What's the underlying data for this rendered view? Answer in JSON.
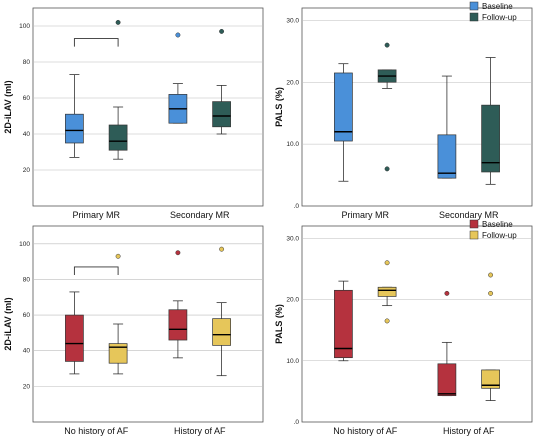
{
  "chart_data": [
    {
      "type": "boxplot",
      "ylabel": "2D-iLAV (ml)",
      "ylim": [
        0,
        110
      ],
      "yticks": [
        20,
        40,
        60,
        80,
        100
      ],
      "categories": [
        "Primary MR",
        "Secondary MR"
      ],
      "series": [
        {
          "color": "#4a90d9",
          "boxes": [
            {
              "whisker_low": 27,
              "q1": 35,
              "median": 42,
              "q3": 51,
              "whisker_high": 73,
              "outliers": []
            },
            {
              "whisker_low": 46,
              "q1": 46,
              "median": 54,
              "q3": 62,
              "whisker_high": 68,
              "outliers": [
                95
              ]
            }
          ]
        },
        {
          "color": "#2e5c57",
          "boxes": [
            {
              "whisker_low": 26,
              "q1": 31,
              "median": 36,
              "q3": 45,
              "whisker_high": 55,
              "outliers": [
                102
              ]
            },
            {
              "whisker_low": 40,
              "q1": 44,
              "median": 50,
              "q3": 58,
              "whisker_high": 67,
              "outliers": [
                97
              ]
            }
          ]
        }
      ],
      "bracket": {
        "category": 0,
        "y": 93
      }
    },
    {
      "type": "boxplot",
      "ylabel": "PALS (%)",
      "ylim": [
        0,
        32
      ],
      "yticks": [
        0,
        10,
        20,
        30
      ],
      "ytick_labels": [
        ".0",
        "10.0",
        "20.0",
        "30.0"
      ],
      "categories": [
        "Primary MR",
        "Secondary MR"
      ],
      "legend": {
        "position": "top-right",
        "labels": [
          "Baseline",
          "Follow-up"
        ]
      },
      "series": [
        {
          "name": "Baseline",
          "color": "#4a90d9",
          "boxes": [
            {
              "whisker_low": 4,
              "q1": 10.5,
              "median": 12,
              "q3": 21.5,
              "whisker_high": 23,
              "outliers": []
            },
            {
              "whisker_low": 4.5,
              "q1": 4.5,
              "median": 5.3,
              "q3": 11.5,
              "whisker_high": 21,
              "outliers": []
            }
          ]
        },
        {
          "name": "Follow-up",
          "color": "#2e5c57",
          "boxes": [
            {
              "whisker_low": 19,
              "q1": 20,
              "median": 21,
              "q3": 22,
              "whisker_high": 22,
              "outliers": [
                26,
                6
              ]
            },
            {
              "whisker_low": 3.5,
              "q1": 5.5,
              "median": 7,
              "q3": 16.3,
              "whisker_high": 24,
              "outliers": []
            }
          ]
        }
      ]
    },
    {
      "type": "boxplot",
      "ylabel": "2D-iLAV (ml)",
      "ylim": [
        0,
        110
      ],
      "yticks": [
        20,
        40,
        60,
        80,
        100
      ],
      "categories": [
        "No history of AF",
        "History of AF"
      ],
      "series": [
        {
          "color": "#b5323e",
          "boxes": [
            {
              "whisker_low": 27,
              "q1": 34,
              "median": 44,
              "q3": 60,
              "whisker_high": 73,
              "outliers": []
            },
            {
              "whisker_low": 36,
              "q1": 46,
              "median": 52,
              "q3": 63,
              "whisker_high": 68,
              "outliers": [
                95
              ]
            }
          ]
        },
        {
          "color": "#e6c65a",
          "boxes": [
            {
              "whisker_low": 27,
              "q1": 33,
              "median": 42,
              "q3": 44,
              "whisker_high": 55,
              "outliers": [
                93
              ]
            },
            {
              "whisker_low": 26,
              "q1": 43,
              "median": 49,
              "q3": 58,
              "whisker_high": 67,
              "outliers": [
                97
              ]
            }
          ]
        }
      ],
      "bracket": {
        "category": 0,
        "y": 87
      }
    },
    {
      "type": "boxplot",
      "ylabel": "PALS (%)",
      "ylim": [
        0,
        32
      ],
      "yticks": [
        0,
        10,
        20,
        30
      ],
      "ytick_labels": [
        ".0",
        "10.0",
        "20.0",
        "30.0"
      ],
      "categories": [
        "No history of AF",
        "History of AF"
      ],
      "legend": {
        "position": "top-right",
        "labels": [
          "Baseline",
          "Follow-up"
        ]
      },
      "series": [
        {
          "name": "Baseline",
          "color": "#b5323e",
          "boxes": [
            {
              "whisker_low": 10,
              "q1": 10.5,
              "median": 12,
              "q3": 21.5,
              "whisker_high": 23,
              "outliers": []
            },
            {
              "whisker_low": 4.3,
              "q1": 4.3,
              "median": 4.6,
              "q3": 9.5,
              "whisker_high": 13,
              "outliers": [
                21
              ]
            }
          ]
        },
        {
          "name": "Follow-up",
          "color": "#e6c65a",
          "boxes": [
            {
              "whisker_low": 19,
              "q1": 20.5,
              "median": 21.5,
              "q3": 22,
              "whisker_high": 22,
              "outliers": [
                26,
                16.5
              ]
            },
            {
              "whisker_low": 3.5,
              "q1": 5.5,
              "median": 6,
              "q3": 8.5,
              "whisker_high": 8.5,
              "outliers": [
                24,
                21
              ]
            }
          ]
        }
      ]
    }
  ]
}
